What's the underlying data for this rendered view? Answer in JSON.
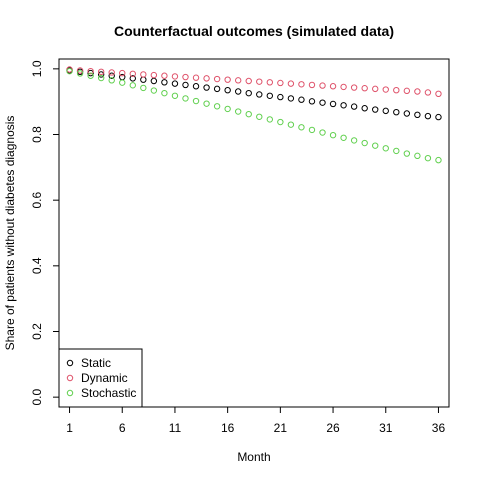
{
  "chart_data": {
    "type": "scatter",
    "title": "Counterfactual outcomes (simulated data)",
    "xlabel": "Month",
    "ylabel": "Share of patients without diabetes diagnosis",
    "xlim": [
      0,
      37
    ],
    "ylim": [
      -0.03,
      1.03
    ],
    "x_ticks": [
      1,
      6,
      11,
      16,
      21,
      26,
      31,
      36
    ],
    "y_ticks": [
      0.0,
      0.2,
      0.4,
      0.6,
      0.8,
      1.0
    ],
    "x_tick_labels": [
      "1",
      "6",
      "11",
      "16",
      "21",
      "26",
      "31",
      "36"
    ],
    "y_tick_labels": [
      "0.0",
      "0.2",
      "0.4",
      "0.6",
      "0.8",
      "1.0"
    ],
    "legend_position": "bottom-left",
    "x": [
      1,
      2,
      3,
      4,
      5,
      6,
      7,
      8,
      9,
      10,
      11,
      12,
      13,
      14,
      15,
      16,
      17,
      18,
      19,
      20,
      21,
      22,
      23,
      24,
      25,
      26,
      27,
      28,
      29,
      30,
      31,
      32,
      33,
      34,
      35,
      36
    ],
    "series": [
      {
        "name": "Static",
        "color": "#000000",
        "values": [
          0.995,
          0.991,
          0.987,
          0.983,
          0.979,
          0.975,
          0.971,
          0.967,
          0.963,
          0.959,
          0.955,
          0.951,
          0.947,
          0.943,
          0.939,
          0.935,
          0.931,
          0.926,
          0.922,
          0.918,
          0.914,
          0.91,
          0.906,
          0.901,
          0.897,
          0.893,
          0.889,
          0.885,
          0.88,
          0.876,
          0.872,
          0.868,
          0.864,
          0.86,
          0.856,
          0.853
        ]
      },
      {
        "name": "Dynamic",
        "color": "#DF536B",
        "values": [
          0.998,
          0.995,
          0.993,
          0.991,
          0.989,
          0.987,
          0.985,
          0.983,
          0.981,
          0.979,
          0.977,
          0.975,
          0.973,
          0.971,
          0.969,
          0.967,
          0.965,
          0.963,
          0.961,
          0.959,
          0.957,
          0.955,
          0.953,
          0.951,
          0.949,
          0.947,
          0.945,
          0.943,
          0.941,
          0.939,
          0.937,
          0.935,
          0.933,
          0.931,
          0.928,
          0.924
        ]
      },
      {
        "name": "Stochastic",
        "color": "#61D04F",
        "values": [
          0.993,
          0.986,
          0.979,
          0.972,
          0.965,
          0.958,
          0.95,
          0.942,
          0.934,
          0.926,
          0.918,
          0.91,
          0.902,
          0.894,
          0.886,
          0.878,
          0.87,
          0.862,
          0.854,
          0.846,
          0.838,
          0.83,
          0.822,
          0.814,
          0.806,
          0.798,
          0.79,
          0.782,
          0.774,
          0.766,
          0.758,
          0.75,
          0.742,
          0.735,
          0.728,
          0.722
        ]
      }
    ]
  }
}
